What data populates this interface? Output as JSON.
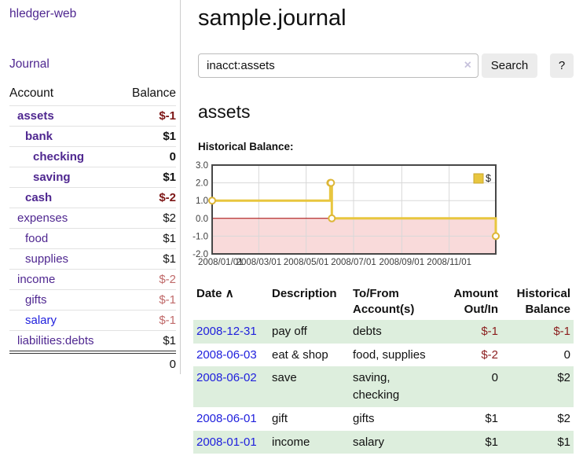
{
  "app": {
    "brand": "hledger-web",
    "nav_journal": "Journal"
  },
  "sidebar": {
    "accounts_header": {
      "account": "Account",
      "balance": "Balance"
    },
    "accounts": [
      {
        "name": "assets",
        "balance": "$-1",
        "level": 1,
        "bold": true,
        "balance_style": "neg-strong",
        "link_style": "visited"
      },
      {
        "name": "bank",
        "balance": "$1",
        "level": 2,
        "bold": true,
        "balance_style": "pos",
        "link_style": "visited"
      },
      {
        "name": "checking",
        "balance": "0",
        "level": 3,
        "bold": true,
        "balance_style": "pos",
        "link_style": "visited"
      },
      {
        "name": "saving",
        "balance": "$1",
        "level": 3,
        "bold": true,
        "balance_style": "pos",
        "link_style": "visited"
      },
      {
        "name": "cash",
        "balance": "$-2",
        "level": 2,
        "bold": true,
        "balance_style": "neg-strong",
        "link_style": "visited"
      },
      {
        "name": "expenses",
        "balance": "$2",
        "level": 1,
        "bold": false,
        "balance_style": "pos",
        "link_style": "visited"
      },
      {
        "name": "food",
        "balance": "$1",
        "level": 2,
        "bold": false,
        "balance_style": "pos",
        "link_style": "visited"
      },
      {
        "name": "supplies",
        "balance": "$1",
        "level": 2,
        "bold": false,
        "balance_style": "pos",
        "link_style": "visited"
      },
      {
        "name": "income",
        "balance": "$-2",
        "level": 1,
        "bold": false,
        "balance_style": "neg-soft",
        "link_style": "visited"
      },
      {
        "name": "gifts",
        "balance": "$-1",
        "level": 2,
        "bold": false,
        "balance_style": "neg-soft",
        "link_style": "visited"
      },
      {
        "name": "salary",
        "balance": "$-1",
        "level": 2,
        "bold": false,
        "balance_style": "neg-soft",
        "link_style": "unvisited"
      },
      {
        "name": "liabilities:debts",
        "balance": "$1",
        "level": 1,
        "bold": false,
        "balance_style": "pos",
        "link_style": "visited"
      }
    ],
    "total": "0"
  },
  "header": {
    "title": "sample.journal"
  },
  "search": {
    "query": "inacct:assets",
    "clear_icon": "×",
    "button": "Search",
    "help_button": "?"
  },
  "account_page": {
    "heading": "assets",
    "chart_title": "Historical Balance:"
  },
  "chart_data": {
    "type": "line",
    "step": true,
    "title": "Historical Balance",
    "legend": "$",
    "x_min": "2008-01-01",
    "x_max": "2008-12-31",
    "ylim": [
      -2.0,
      3.0
    ],
    "y_ticks": [
      3.0,
      2.0,
      1.0,
      0.0,
      -1.0,
      -2.0
    ],
    "x_ticks": [
      "2008/01/01",
      "2008/03/01",
      "2008/05/01",
      "2008/07/01",
      "2008/09/01",
      "2008/11/01"
    ],
    "points": [
      {
        "date": "2008-01-01",
        "value": 1
      },
      {
        "date": "2008-06-01",
        "value": 2
      },
      {
        "date": "2008-06-02",
        "value": 2
      },
      {
        "date": "2008-06-03",
        "value": 0
      },
      {
        "date": "2008-12-31",
        "value": -1
      }
    ],
    "colors": {
      "line": "#e8c63f",
      "marker_border": "#ddb637",
      "marker_fill": "#ffffff",
      "negative_region": "#f9dada",
      "zero_line": "#a40000",
      "grid": "#d8d8d8",
      "border": "#474747",
      "tick_text": "#3d3d3d"
    }
  },
  "register": {
    "columns": [
      {
        "line1": "Date",
        "line2": "",
        "sort_indicator": "∧",
        "align": "left"
      },
      {
        "line1": "Description",
        "line2": "",
        "sort_indicator": "",
        "align": "left"
      },
      {
        "line1": "To/From",
        "line2": "Account(s)",
        "sort_indicator": "",
        "align": "left"
      },
      {
        "line1": "Amount",
        "line2": "Out/In",
        "sort_indicator": "",
        "align": "right"
      },
      {
        "line1": "Historical",
        "line2": "Balance",
        "sort_indicator": "",
        "align": "right"
      }
    ],
    "rows": [
      {
        "date": "2008-12-31",
        "description": "pay off",
        "accounts": "debts",
        "amount": "$-1",
        "amount_negative": true,
        "balance": "$-1",
        "balance_negative": true,
        "highlight": true
      },
      {
        "date": "2008-06-03",
        "description": "eat & shop",
        "accounts": "food, supplies",
        "amount": "$-2",
        "amount_negative": true,
        "balance": "0",
        "balance_negative": false,
        "highlight": false
      },
      {
        "date": "2008-06-02",
        "description": "save",
        "accounts": "saving, checking",
        "amount": "0",
        "amount_negative": false,
        "balance": "$2",
        "balance_negative": false,
        "highlight": true
      },
      {
        "date": "2008-06-01",
        "description": "gift",
        "accounts": "gifts",
        "amount": "$1",
        "amount_negative": false,
        "balance": "$2",
        "balance_negative": false,
        "highlight": false
      },
      {
        "date": "2008-01-01",
        "description": "income",
        "accounts": "salary",
        "amount": "$1",
        "amount_negative": false,
        "balance": "$1",
        "balance_negative": false,
        "highlight": true
      }
    ]
  },
  "colors": {
    "link_purple": "#4f2790",
    "link_blue": "#2020dd",
    "negative_strong": "#7d1616",
    "negative_soft": "#c06a6a",
    "negative_table": "#8b1e1e",
    "row_highlight": "#ddeedd",
    "accent_gold": "#e8c63f"
  }
}
